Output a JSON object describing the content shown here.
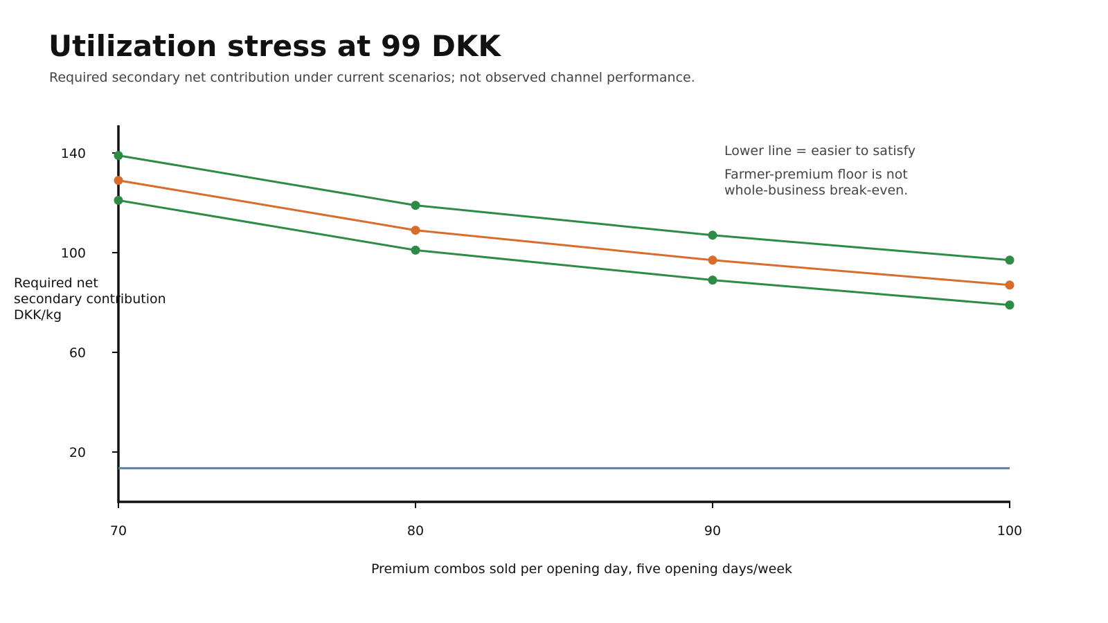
{
  "chart_data": {
    "type": "line",
    "title": "Utilization stress at 99 DKK",
    "subtitle": "Required secondary net contribution under current scenarios; not observed channel performance.",
    "xlabel": "Premium combos sold per opening day, five opening days/week",
    "ylabel_lines": [
      "Required net",
      "secondary contribution",
      "DKK/kg"
    ],
    "x": [
      70,
      80,
      90,
      100
    ],
    "x_ticks": [
      70,
      80,
      90,
      100
    ],
    "y_ticks": [
      20,
      60,
      100,
      140
    ],
    "xlim": [
      70,
      100
    ],
    "ylim": [
      0,
      150
    ],
    "grid": false,
    "series": [
      {
        "values": [
          139,
          119,
          107,
          97
        ],
        "color": "#2e8b45",
        "markers": true
      },
      {
        "values": [
          129,
          109,
          97,
          87
        ],
        "color": "#d96b2b",
        "markers": true
      },
      {
        "values": [
          121,
          101,
          89,
          79
        ],
        "color": "#2e8b45",
        "markers": true
      },
      {
        "values": [
          13.5,
          13.5,
          13.5,
          13.5
        ],
        "color": "#4a86a8",
        "markers": false
      }
    ],
    "annotations": [
      [
        "Lower line = easier to satisfy"
      ],
      [
        "Farmer-premium floor is not",
        "whole-business break-even."
      ]
    ]
  }
}
